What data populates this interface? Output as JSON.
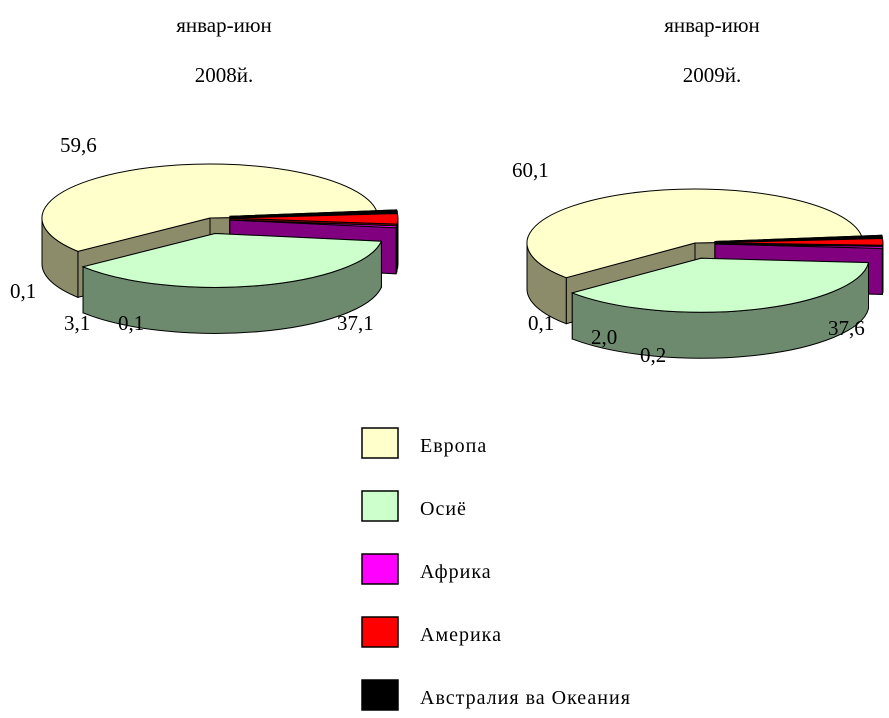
{
  "colors": {
    "Европа": "#ffffcc",
    "Осиё": "#ccffcc",
    "Африка": "#ff00ff",
    "Америка": "#ff0000",
    "Австралия ва Океания": "#000000"
  },
  "chart_data": [
    {
      "type": "pie",
      "title_line1": "январ-июн",
      "title_line2": "2008й.",
      "categories": [
        "Европа",
        "Осиё",
        "Африка",
        "Америка",
        "Австралия ва Океания"
      ],
      "values": [
        59.6,
        37.1,
        0.1,
        3.1,
        0.1
      ],
      "data_labels": [
        "59,6",
        "37,1",
        "0,1",
        "3,1",
        "0,1"
      ],
      "exploded": [
        "Осиё",
        "Африка",
        "Америка",
        "Австралия ва Океания"
      ]
    },
    {
      "type": "pie",
      "title_line1": "январ-июн",
      "title_line2": "2009й.",
      "categories": [
        "Европа",
        "Осиё",
        "Африка",
        "Америка",
        "Австралия ва Океания"
      ],
      "values": [
        60.1,
        37.6,
        0.2,
        2.0,
        0.1
      ],
      "data_labels": [
        "60,1",
        "37,6",
        "0,2",
        "2,0",
        "0,1"
      ],
      "exploded": [
        "Осиё",
        "Африка",
        "Америка",
        "Австралия ва Океания"
      ]
    }
  ],
  "legend": {
    "position": "bottom-center",
    "items": [
      "Европа",
      "Осиё",
      "Африка",
      "Америка",
      "Австралия ва Океания"
    ]
  }
}
